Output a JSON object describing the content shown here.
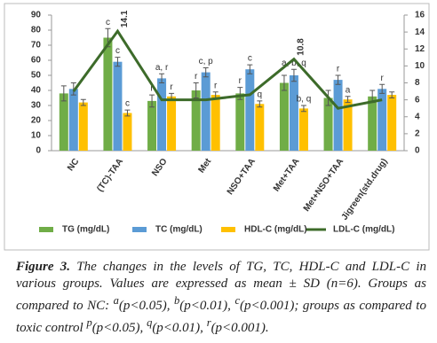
{
  "chart_data": {
    "type": "bar",
    "categories": [
      "NC",
      "(TC)-TAA",
      "NSO",
      "Met",
      "NSO+TAA",
      "Met+TAA",
      "Met+NSO+TAA",
      "Jigreen(std.drug)"
    ],
    "series": [
      {
        "name": "TG (mg/dL)",
        "color": "#70ad47",
        "values": [
          38,
          75,
          33,
          40,
          38,
          45,
          35,
          36
        ],
        "errors": [
          5,
          6,
          4,
          5,
          4,
          5,
          5,
          4
        ],
        "annotations": [
          null,
          "c",
          "r",
          "r",
          "r",
          null,
          null,
          null
        ]
      },
      {
        "name": "TC (mg/dL)",
        "color": "#5b9bd5",
        "values": [
          41,
          59,
          48,
          52,
          54,
          50,
          47,
          41
        ],
        "errors": [
          4,
          3,
          3,
          3,
          3,
          4,
          3,
          3
        ],
        "annotations": [
          null,
          "c",
          "a, r",
          "c, p",
          "c",
          "a, b, q",
          "r",
          "r"
        ]
      },
      {
        "name": "HDL-C (mg/dL)",
        "color": "#ffc000",
        "values": [
          32,
          25,
          36,
          37,
          31,
          28,
          34,
          37
        ],
        "errors": [
          2,
          2,
          2,
          2,
          2,
          2,
          2,
          2
        ],
        "annotations": [
          null,
          "c",
          "r",
          "r",
          "q",
          "b, q",
          "a",
          null
        ]
      },
      {
        "name": "LDL-C (mg/dL)",
        "color": "#3d6b2a",
        "type": "line",
        "axis": "y2",
        "values": [
          7,
          14.1,
          6,
          6,
          6.6,
          10.8,
          5,
          6
        ],
        "value_labels": [
          null,
          "14.1",
          null,
          null,
          null,
          "10.8",
          null,
          null
        ]
      }
    ],
    "ylim": [
      0,
      90
    ],
    "yticks": [
      0,
      10,
      20,
      30,
      40,
      50,
      60,
      70,
      80,
      90
    ],
    "y2lim": [
      0,
      16
    ],
    "y2ticks": [
      0,
      2,
      4,
      6,
      8,
      10,
      12,
      14,
      16
    ],
    "legend": "bottom"
  },
  "caption": {
    "label": "Figure 3.",
    "parts": [
      {
        "t": " The changes in the levels of TG, TC, HDL-C and LDL-C in various groups. Values are expressed as mean ± SD (n=6). Groups as compared to NC: "
      },
      {
        "sup": "a"
      },
      {
        "t": "(p<0.05), "
      },
      {
        "sup": "b"
      },
      {
        "t": "(p<0.01), "
      },
      {
        "sup": "c"
      },
      {
        "t": "(p<0.001); groups as compared to toxic control "
      },
      {
        "sup": "p"
      },
      {
        "t": "(p<0.05), "
      },
      {
        "sup": "q"
      },
      {
        "t": "(p<0.01), "
      },
      {
        "sup": "r"
      },
      {
        "t": "(p<0.001)."
      }
    ]
  }
}
